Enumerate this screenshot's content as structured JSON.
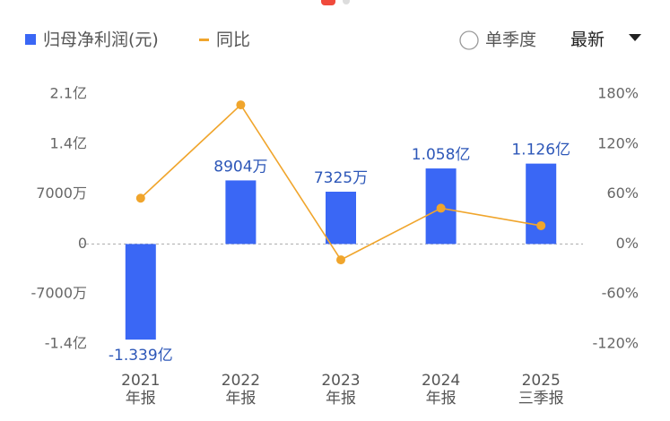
{
  "chart_data": {
    "type": "bar",
    "categories": [
      [
        "2021",
        "年报"
      ],
      [
        "2022",
        "年报"
      ],
      [
        "2023",
        "年报"
      ],
      [
        "2024",
        "年报"
      ],
      [
        "2025",
        "三季报"
      ]
    ],
    "series": [
      {
        "name": "归母净利润(元)",
        "type": "bar",
        "color": "#3a67f5",
        "values": [
          -133900000,
          89040000,
          73250000,
          105800000,
          112600000
        ],
        "value_labels": [
          "-1.339亿",
          "8904万",
          "7325万",
          "1.058亿",
          "1.126亿"
        ]
      },
      {
        "name": "同比",
        "type": "line",
        "axis": "y2",
        "color": "#f0a52c",
        "values": [
          55,
          167,
          -19,
          43,
          22
        ]
      }
    ],
    "ylim": [
      -140000000,
      210000000
    ],
    "yticks": [
      {
        "value": 210000000,
        "label": "2.1亿"
      },
      {
        "value": 140000000,
        "label": "1.4亿"
      },
      {
        "value": 70000000,
        "label": "7000万"
      },
      0,
      {
        "value": -70000000,
        "label": "-7000万"
      },
      {
        "value": -140000000,
        "label": "-1.4亿"
      }
    ],
    "y2lim": [
      -120,
      180
    ],
    "y2ticks": [
      {
        "value": 180,
        "label": "180%"
      },
      {
        "value": 120,
        "label": "120%"
      },
      {
        "value": 60,
        "label": "60%"
      },
      {
        "value": 0,
        "label": "0%"
      },
      {
        "value": -60,
        "label": "-60%"
      },
      {
        "value": -120,
        "label": "-120%"
      }
    ],
    "zero_line": true
  },
  "controls": {
    "quarterly": "单季度",
    "period": "最新"
  }
}
